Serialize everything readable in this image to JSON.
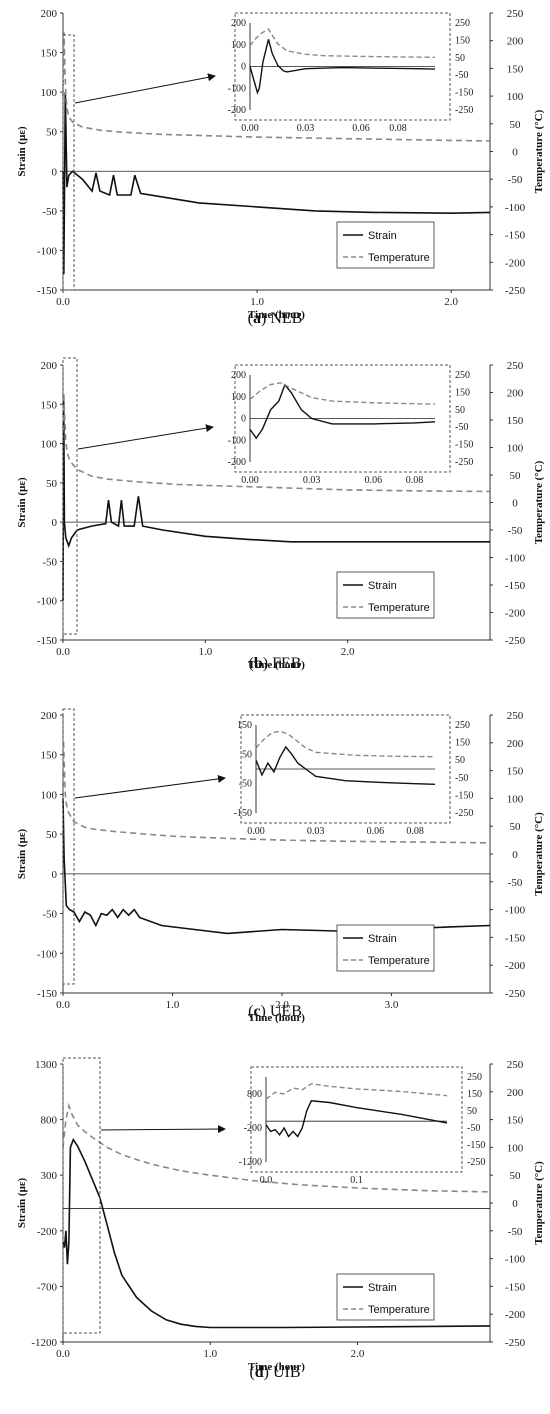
{
  "chart_data": [
    {
      "type": "line",
      "caption": {
        "letter": "a",
        "name": "NEB"
      },
      "xlabel": "Time (hour)",
      "ylabel": "Strain (με)",
      "y2label": "Temperature (°C)",
      "xlim": [
        0,
        2.2
      ],
      "ylim": [
        -150,
        200
      ],
      "y2lim": [
        -250,
        250
      ],
      "xticks": [
        0,
        1,
        2
      ],
      "xticklabels": [
        "0.0",
        "1.0",
        "2.0"
      ],
      "yticks": [
        -150,
        -100,
        -50,
        0,
        50,
        100,
        150,
        200
      ],
      "y2ticks": [
        -250,
        -200,
        -150,
        -100,
        -50,
        0,
        50,
        100,
        150,
        200,
        250
      ],
      "legend": {
        "position": "bottom-right",
        "items": [
          "Strain",
          "Temperature"
        ]
      },
      "series": [
        {
          "name": "Strain",
          "axis": "y",
          "style": "solid",
          "x": [
            0,
            0.004,
            0.008,
            0.012,
            0.02,
            0.03,
            0.05,
            0.1,
            0.15,
            0.17,
            0.19,
            0.24,
            0.26,
            0.28,
            0.35,
            0.37,
            0.4,
            0.5,
            0.7,
            1.0,
            1.3,
            1.6,
            2.0,
            2.2
          ],
          "y": [
            0,
            -130,
            -10,
            100,
            -20,
            -5,
            0,
            -10,
            -25,
            -2,
            -25,
            -30,
            -5,
            -30,
            -30,
            -5,
            -28,
            -32,
            -40,
            -45,
            -50,
            -52,
            -53,
            -52
          ]
        },
        {
          "name": "Temperature",
          "axis": "y2",
          "style": "dashed",
          "x": [
            0,
            0.005,
            0.01,
            0.015,
            0.02,
            0.03,
            0.05,
            0.1,
            0.2,
            0.3,
            0.5,
            0.8,
            1.0,
            1.5,
            2.0,
            2.2
          ],
          "y": [
            100,
            215,
            150,
            100,
            80,
            62,
            53,
            44,
            38,
            35,
            31,
            28,
            26,
            23,
            20,
            19
          ]
        }
      ],
      "inset": {
        "xlim": [
          0,
          0.1
        ],
        "ylim": [
          -200,
          200
        ],
        "y2lim": [
          -250,
          250
        ],
        "xticks": [
          0,
          0.03,
          0.06,
          0.08
        ],
        "xticklabels": [
          "0.00",
          "0.03",
          "0.06",
          "0.08"
        ],
        "yticks": [
          -200,
          -100,
          0,
          100,
          200
        ],
        "y2ticks": [
          -250,
          -150,
          -50,
          50,
          150,
          250
        ],
        "series": [
          {
            "name": "Strain",
            "axis": "y",
            "style": "solid",
            "x": [
              0,
              0.004,
              0.005,
              0.007,
              0.01,
              0.012,
              0.015,
              0.018,
              0.02,
              0.03,
              0.05,
              0.07,
              0.09,
              0.1
            ],
            "y": [
              0,
              -120,
              -100,
              20,
              125,
              60,
              5,
              -20,
              -25,
              -10,
              -5,
              -8,
              -10,
              -12
            ]
          },
          {
            "name": "Temperature",
            "axis": "y2",
            "style": "dashed",
            "x": [
              0,
              0.003,
              0.006,
              0.01,
              0.012,
              0.015,
              0.02,
              0.03,
              0.04,
              0.06,
              0.08,
              0.1
            ],
            "y": [
              120,
              160,
              190,
              215,
              180,
              130,
              90,
              70,
              62,
              58,
              55,
              53
            ]
          }
        ]
      }
    },
    {
      "type": "line",
      "caption": {
        "letter": "b",
        "name": "FEB"
      },
      "xlabel": "Time (hour)",
      "ylabel": "Strain (με)",
      "y2label": "Temperature (°C)",
      "xlim": [
        0,
        3.0
      ],
      "ylim": [
        -150,
        200
      ],
      "y2lim": [
        -250,
        250
      ],
      "xticks": [
        0,
        1,
        2
      ],
      "xticklabels": [
        "0.0",
        "1.0",
        "2.0"
      ],
      "yticks": [
        -150,
        -100,
        -50,
        0,
        50,
        100,
        150,
        200
      ],
      "y2ticks": [
        -250,
        -200,
        -150,
        -100,
        -50,
        0,
        50,
        100,
        150,
        200,
        250
      ],
      "legend": {
        "position": "bottom-right",
        "items": [
          "Strain",
          "Temperature"
        ]
      },
      "series": [
        {
          "name": "Strain",
          "axis": "y",
          "style": "solid",
          "x": [
            0,
            0.005,
            0.01,
            0.02,
            0.04,
            0.06,
            0.1,
            0.2,
            0.3,
            0.32,
            0.34,
            0.39,
            0.41,
            0.43,
            0.5,
            0.53,
            0.56,
            0.7,
            1.0,
            1.3,
            1.6,
            2.0,
            2.5,
            3.0
          ],
          "y": [
            -100,
            155,
            0,
            -20,
            -30,
            -20,
            -10,
            -5,
            -2,
            28,
            0,
            -5,
            28,
            -5,
            -5,
            33,
            -5,
            -10,
            -18,
            -22,
            -25,
            -25,
            -25,
            -25
          ]
        },
        {
          "name": "Temperature",
          "axis": "y2",
          "style": "dashed",
          "x": [
            0,
            0.005,
            0.01,
            0.02,
            0.03,
            0.05,
            0.1,
            0.2,
            0.3,
            0.5,
            0.8,
            1.0,
            1.5,
            2.0,
            2.5,
            3.0
          ],
          "y": [
            130,
            200,
            170,
            110,
            90,
            75,
            60,
            48,
            43,
            38,
            33,
            31,
            27,
            23,
            21,
            20
          ]
        }
      ],
      "inset": {
        "xlim": [
          0,
          0.09
        ],
        "ylim": [
          -200,
          200
        ],
        "y2lim": [
          -250,
          250
        ],
        "xticks": [
          0,
          0.03,
          0.06,
          0.08
        ],
        "xticklabels": [
          "0.00",
          "0.03",
          "0.06",
          "0.08"
        ],
        "yticks": [
          -200,
          -100,
          0,
          100,
          200
        ],
        "y2ticks": [
          -250,
          -150,
          -50,
          50,
          150,
          250
        ],
        "series": [
          {
            "name": "Strain",
            "axis": "y",
            "style": "solid",
            "x": [
              0,
              0.003,
              0.006,
              0.01,
              0.014,
              0.017,
              0.02,
              0.025,
              0.03,
              0.04,
              0.06,
              0.08,
              0.09
            ],
            "y": [
              -50,
              -90,
              -50,
              40,
              80,
              155,
              120,
              40,
              0,
              -25,
              -25,
              -20,
              -15
            ]
          },
          {
            "name": "Temperature",
            "axis": "y2",
            "style": "dashed",
            "x": [
              0,
              0.005,
              0.01,
              0.015,
              0.02,
              0.03,
              0.04,
              0.06,
              0.08,
              0.09
            ],
            "y": [
              110,
              160,
              195,
              205,
              175,
              120,
              100,
              90,
              85,
              82
            ]
          }
        ]
      }
    },
    {
      "type": "line",
      "caption": {
        "letter": "c",
        "name": "UEB"
      },
      "xlabel": "Time (hour)",
      "ylabel": "Strain (με)",
      "y2label": "Temperature (°C)",
      "xlim": [
        0,
        3.9
      ],
      "ylim": [
        -150,
        200
      ],
      "y2lim": [
        -250,
        250
      ],
      "xticks": [
        0,
        1,
        2,
        3
      ],
      "xticklabels": [
        "0.0",
        "1.0",
        "2.0",
        "3.0"
      ],
      "yticks": [
        -150,
        -100,
        -50,
        0,
        50,
        100,
        150,
        200
      ],
      "y2ticks": [
        -250,
        -200,
        -150,
        -100,
        -50,
        0,
        50,
        100,
        150,
        200,
        250
      ],
      "legend": {
        "position": "bottom-right",
        "items": [
          "Strain",
          "Temperature"
        ]
      },
      "series": [
        {
          "name": "Strain",
          "axis": "y",
          "style": "solid",
          "x": [
            0,
            0.01,
            0.03,
            0.06,
            0.1,
            0.15,
            0.2,
            0.25,
            0.3,
            0.35,
            0.4,
            0.45,
            0.5,
            0.55,
            0.6,
            0.65,
            0.7,
            0.9,
            1.2,
            1.5,
            2.0,
            2.5,
            3.0,
            3.5,
            3.9
          ],
          "y": [
            95,
            20,
            -40,
            -45,
            -48,
            -60,
            -48,
            -52,
            -65,
            -50,
            -52,
            -45,
            -55,
            -45,
            -52,
            -45,
            -55,
            -65,
            -70,
            -75,
            -70,
            -72,
            -70,
            -67,
            -65
          ]
        },
        {
          "name": "Temperature",
          "axis": "y2",
          "style": "dashed",
          "x": [
            0,
            0.005,
            0.01,
            0.02,
            0.03,
            0.05,
            0.1,
            0.2,
            0.3,
            0.5,
            0.8,
            1.0,
            1.5,
            2.0,
            2.5,
            3.0,
            3.5,
            3.9
          ],
          "y": [
            100,
            205,
            170,
            110,
            90,
            75,
            58,
            48,
            44,
            40,
            35,
            32,
            28,
            25,
            23,
            22,
            21,
            20
          ]
        }
      ],
      "inset": {
        "xlim": [
          0,
          0.09
        ],
        "ylim": [
          -150,
          150
        ],
        "y2lim": [
          -250,
          250
        ],
        "xticks": [
          0,
          0.03,
          0.06,
          0.08
        ],
        "xticklabels": [
          "0.00",
          "0.03",
          "0.06",
          "0.08"
        ],
        "yticks": [
          -150,
          -50,
          50,
          150
        ],
        "y2ticks": [
          -250,
          -150,
          -50,
          50,
          150,
          250
        ],
        "series": [
          {
            "name": "Strain",
            "axis": "y",
            "style": "solid",
            "x": [
              0,
              0.003,
              0.006,
              0.009,
              0.012,
              0.015,
              0.018,
              0.021,
              0.025,
              0.03,
              0.045,
              0.06,
              0.08,
              0.09
            ],
            "y": [
              30,
              -20,
              20,
              -10,
              40,
              75,
              50,
              20,
              0,
              -25,
              -40,
              -45,
              -50,
              -52
            ]
          },
          {
            "name": "Temperature",
            "axis": "y2",
            "style": "dashed",
            "x": [
              0,
              0.004,
              0.008,
              0.012,
              0.016,
              0.02,
              0.025,
              0.03,
              0.05,
              0.07,
              0.09
            ],
            "y": [
              120,
              170,
              205,
              215,
              200,
              165,
              120,
              95,
              78,
              72,
              70
            ]
          }
        ]
      }
    },
    {
      "type": "line",
      "caption": {
        "letter": "d",
        "name": "UIB"
      },
      "xlabel": "Time (hour)",
      "ylabel": "Strain (με)",
      "y2label": "Temperature (°C)",
      "xlim": [
        0,
        2.9
      ],
      "ylim": [
        -1200,
        1300
      ],
      "y2lim": [
        -250,
        250
      ],
      "xticks": [
        0,
        1,
        2
      ],
      "xticklabels": [
        "0.0",
        "1.0",
        "2.0"
      ],
      "yticks": [
        -1200,
        -700,
        -200,
        300,
        800,
        1300
      ],
      "y2ticks": [
        -250,
        -200,
        -150,
        -100,
        -50,
        0,
        50,
        100,
        150,
        200,
        250
      ],
      "legend": {
        "position": "bottom-right",
        "items": [
          "Strain",
          "Temperature"
        ]
      },
      "series": [
        {
          "name": "Strain",
          "axis": "y",
          "style": "solid",
          "x": [
            0,
            0.01,
            0.02,
            0.03,
            0.04,
            0.05,
            0.07,
            0.1,
            0.15,
            0.2,
            0.25,
            0.3,
            0.35,
            0.4,
            0.5,
            0.6,
            0.7,
            0.8,
            0.9,
            1.0,
            1.2,
            1.5,
            2.0,
            2.5,
            2.9
          ],
          "y": [
            -300,
            -350,
            -200,
            -500,
            -300,
            550,
            620,
            560,
            420,
            260,
            100,
            -150,
            -400,
            -600,
            -800,
            -920,
            -1000,
            -1040,
            -1060,
            -1070,
            -1070,
            -1070,
            -1065,
            -1060,
            -1055
          ]
        },
        {
          "name": "Temperature",
          "axis": "y2",
          "style": "dashed",
          "x": [
            0,
            0.02,
            0.04,
            0.06,
            0.08,
            0.1,
            0.15,
            0.2,
            0.3,
            0.4,
            0.5,
            0.6,
            0.8,
            1.0,
            1.3,
            1.6,
            2.0,
            2.5,
            2.9
          ],
          "y": [
            100,
            150,
            175,
            160,
            150,
            140,
            128,
            118,
            100,
            87,
            78,
            70,
            58,
            50,
            40,
            33,
            27,
            22,
            20
          ]
        }
      ],
      "inset": {
        "xlim": [
          0,
          0.2
        ],
        "ylim": [
          -1200,
          1300
        ],
        "y2lim": [
          -250,
          250
        ],
        "xticks": [
          0,
          0.1
        ],
        "xticklabels": [
          "0.0",
          "0.1"
        ],
        "yticks": [
          -1200,
          -200,
          800
        ],
        "y2ticks": [
          -250,
          -150,
          -50,
          50,
          150,
          250
        ],
        "series": [
          {
            "name": "Strain",
            "axis": "y",
            "style": "solid",
            "x": [
              0,
              0.005,
              0.01,
              0.015,
              0.02,
              0.025,
              0.03,
              0.035,
              0.04,
              0.045,
              0.05,
              0.07,
              0.1,
              0.15,
              0.2
            ],
            "y": [
              -100,
              -300,
              -250,
              -400,
              -200,
              -450,
              -300,
              -450,
              -200,
              300,
              600,
              550,
              400,
              200,
              -50
            ]
          },
          {
            "name": "Temperature",
            "axis": "y2",
            "style": "dashed",
            "x": [
              0,
              0.01,
              0.02,
              0.03,
              0.04,
              0.05,
              0.07,
              0.1,
              0.15,
              0.2
            ],
            "y": [
              120,
              160,
              150,
              185,
              175,
              210,
              195,
              180,
              165,
              140
            ]
          }
        ]
      }
    }
  ]
}
